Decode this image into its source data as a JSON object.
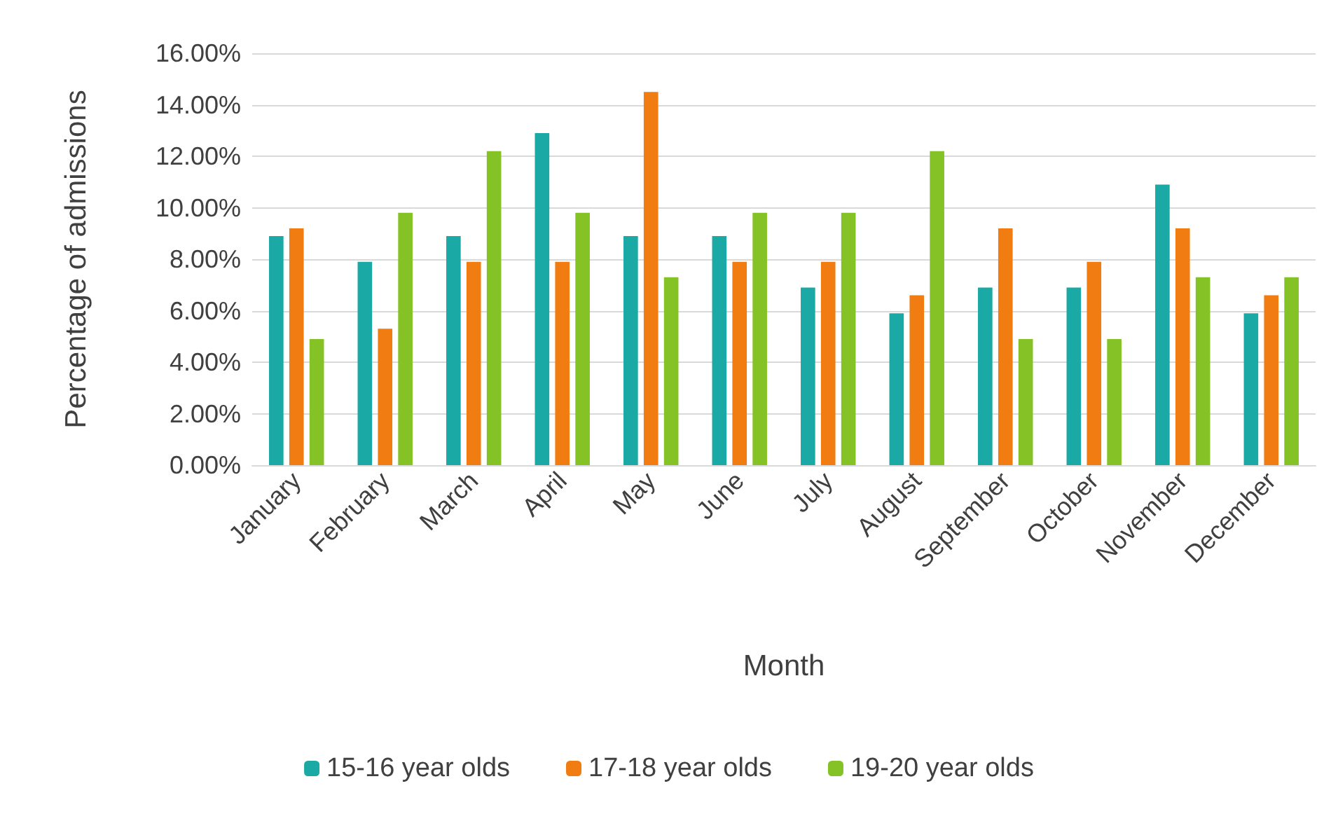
{
  "chart_data": {
    "type": "bar",
    "xlabel": "Month",
    "ylabel": "Percentage of admissions",
    "categories": [
      "January",
      "February",
      "March",
      "April",
      "May",
      "June",
      "July",
      "August",
      "September",
      "October",
      "November",
      "December"
    ],
    "series": [
      {
        "name": "15-16 year olds",
        "color": "#1ba9a6",
        "values": [
          8.9,
          7.9,
          8.9,
          12.9,
          8.9,
          8.9,
          6.9,
          5.9,
          6.9,
          6.9,
          10.9,
          5.9
        ]
      },
      {
        "name": "17-18 year olds",
        "color": "#f07c12",
        "values": [
          9.2,
          5.3,
          7.9,
          7.9,
          14.5,
          7.9,
          7.9,
          6.6,
          9.2,
          7.9,
          9.2,
          6.6
        ]
      },
      {
        "name": "19-20 year olds",
        "color": "#84c225",
        "values": [
          4.9,
          9.8,
          12.2,
          9.8,
          7.3,
          9.8,
          9.8,
          12.2,
          4.9,
          4.9,
          7.3,
          7.3
        ]
      }
    ],
    "ylim": [
      0,
      16
    ],
    "yticks": [
      {
        "value": 0,
        "label": "0.00%"
      },
      {
        "value": 2,
        "label": "2.00%"
      },
      {
        "value": 4,
        "label": "4.00%"
      },
      {
        "value": 6,
        "label": "6.00%"
      },
      {
        "value": 8,
        "label": "8.00%"
      },
      {
        "value": 10,
        "label": "10.00%"
      },
      {
        "value": 12,
        "label": "12.00%"
      },
      {
        "value": 14,
        "label": "14.00%"
      },
      {
        "value": 16,
        "label": "16.00%"
      }
    ],
    "grid": "y",
    "legend": "bottom"
  }
}
